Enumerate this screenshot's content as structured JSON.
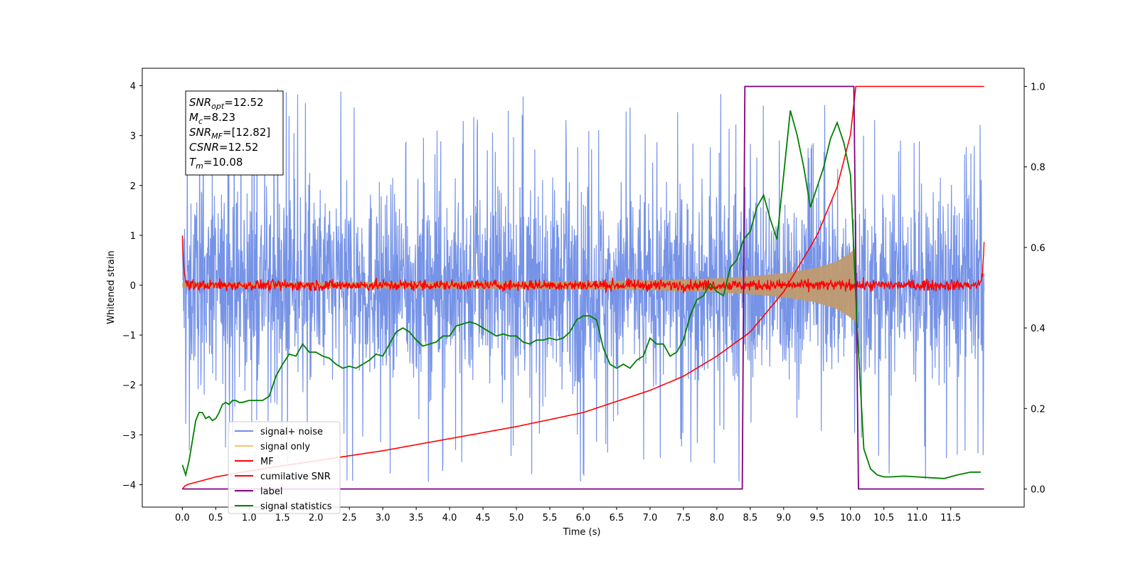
{
  "chart_data": {
    "type": "line",
    "xlabel": "Time (s)",
    "ylabel": "Whitened strain",
    "xlim": [
      -0.6,
      12.6
    ],
    "ylim": [
      -4.45,
      4.35
    ],
    "y2lim": [
      -0.045,
      1.045
    ],
    "x_ticks": [
      "0.0",
      "0.5",
      "1.0",
      "1.5",
      "2.0",
      "2.5",
      "3.0",
      "3.5",
      "4.0",
      "4.5",
      "5.0",
      "5.5",
      "6.0",
      "6.5",
      "7.0",
      "7.5",
      "8.0",
      "8.5",
      "9.0",
      "9.5",
      "10.0",
      "10.5",
      "11.0",
      "11.5"
    ],
    "y_ticks": [
      "−4",
      "−3",
      "−2",
      "−1",
      "0",
      "1",
      "2",
      "3",
      "4"
    ],
    "y2_ticks": [
      "0.0",
      "0.2",
      "0.4",
      "0.6",
      "0.8",
      "1.0"
    ],
    "annotation": {
      "lines": [
        {
          "sym": "SNR",
          "sub": "opt",
          "val": "=12.52"
        },
        {
          "sym": "M",
          "sub": "c",
          "val": "=8.23"
        },
        {
          "sym": "SNR",
          "sub": "MF",
          "val": "=[12.82]"
        },
        {
          "sym": "CSNR",
          "sub": "",
          "val": "=12.52"
        },
        {
          "sym": "T",
          "sub": "m",
          "val": "=10.08"
        }
      ]
    },
    "legend": {
      "position": "lower-left",
      "entries": [
        {
          "label": "signal+ noise",
          "color": "#6f8de6"
        },
        {
          "label": "signal only",
          "color": "#f5c56b"
        },
        {
          "label": "MF",
          "color": "#ff0000"
        },
        {
          "label": "cumilative SNR",
          "color": "#ff0000"
        },
        {
          "label": "label",
          "color": "#800080"
        },
        {
          "label": "signal statistics",
          "color": "#008000"
        }
      ]
    },
    "series": [
      {
        "name": "signal+ noise",
        "axis": "left",
        "color": "#6f8de6",
        "x_range": [
          0,
          12
        ],
        "envelope_min": -4.1,
        "envelope_max": 3.95
      },
      {
        "name": "signal only",
        "axis": "left",
        "color": "#c09a70",
        "envelope": {
          "x": [
            0,
            2,
            4,
            6,
            7,
            8,
            8.5,
            9,
            9.5,
            9.8,
            10,
            10.08
          ],
          "amp": [
            0.05,
            0.06,
            0.07,
            0.08,
            0.1,
            0.14,
            0.18,
            0.24,
            0.35,
            0.48,
            0.65,
            0.75
          ]
        }
      },
      {
        "name": "MF",
        "axis": "left",
        "color": "#ff0000",
        "x_range": [
          0,
          12
        ],
        "center": 0,
        "noise_amp": 0.1,
        "edge_peak": 1.0
      },
      {
        "name": "cumilative SNR",
        "axis": "right",
        "color": "#ff0000",
        "x": [
          0,
          0.05,
          0.5,
          1,
          2,
          3,
          4,
          5,
          6,
          7,
          7.5,
          8,
          8.5,
          9,
          9.5,
          9.8,
          10,
          10.08,
          12
        ],
        "y": [
          0.0,
          0.01,
          0.03,
          0.045,
          0.07,
          0.095,
          0.125,
          0.155,
          0.19,
          0.245,
          0.28,
          0.33,
          0.39,
          0.49,
          0.63,
          0.75,
          0.88,
          1.0,
          1.0
        ]
      },
      {
        "name": "label",
        "axis": "right",
        "color": "#800080",
        "x": [
          0,
          8.38,
          8.42,
          10.05,
          10.12,
          12
        ],
        "y": [
          0,
          0,
          1,
          1,
          0,
          0
        ]
      },
      {
        "name": "signal statistics",
        "axis": "right",
        "color": "#008000",
        "x": [
          0,
          0.05,
          0.1,
          0.15,
          0.2,
          0.25,
          0.3,
          0.35,
          0.4,
          0.45,
          0.5,
          0.55,
          0.6,
          0.65,
          0.7,
          0.75,
          0.8,
          0.85,
          0.9,
          1.0,
          1.1,
          1.2,
          1.3,
          1.4,
          1.5,
          1.6,
          1.7,
          1.8,
          1.9,
          2.0,
          2.1,
          2.2,
          2.3,
          2.4,
          2.5,
          2.6,
          2.7,
          2.8,
          2.9,
          3.0,
          3.1,
          3.2,
          3.3,
          3.4,
          3.5,
          3.6,
          3.7,
          3.8,
          3.9,
          4.0,
          4.1,
          4.2,
          4.3,
          4.4,
          4.5,
          4.6,
          4.7,
          4.8,
          4.9,
          5.0,
          5.1,
          5.2,
          5.3,
          5.4,
          5.5,
          5.6,
          5.7,
          5.8,
          5.9,
          6.0,
          6.1,
          6.2,
          6.3,
          6.4,
          6.5,
          6.6,
          6.7,
          6.8,
          6.9,
          7.0,
          7.1,
          7.2,
          7.3,
          7.4,
          7.5,
          7.6,
          7.7,
          7.8,
          7.9,
          8.0,
          8.1,
          8.2,
          8.3,
          8.4,
          8.5,
          8.6,
          8.7,
          8.8,
          8.9,
          9.0,
          9.1,
          9.2,
          9.3,
          9.4,
          9.5,
          9.6,
          9.7,
          9.8,
          9.9,
          10.0,
          10.1,
          10.2,
          10.3,
          10.4,
          10.5,
          10.6,
          10.8,
          11.0,
          11.2,
          11.4,
          11.6,
          11.8,
          11.95
        ],
        "y": [
          0.06,
          0.035,
          0.07,
          0.12,
          0.17,
          0.19,
          0.19,
          0.175,
          0.18,
          0.17,
          0.175,
          0.19,
          0.21,
          0.215,
          0.21,
          0.22,
          0.22,
          0.215,
          0.215,
          0.22,
          0.22,
          0.22,
          0.23,
          0.28,
          0.31,
          0.335,
          0.33,
          0.36,
          0.34,
          0.34,
          0.33,
          0.325,
          0.31,
          0.3,
          0.305,
          0.3,
          0.31,
          0.32,
          0.335,
          0.33,
          0.36,
          0.39,
          0.4,
          0.39,
          0.37,
          0.355,
          0.36,
          0.365,
          0.38,
          0.38,
          0.405,
          0.41,
          0.415,
          0.41,
          0.4,
          0.39,
          0.38,
          0.385,
          0.38,
          0.38,
          0.365,
          0.36,
          0.37,
          0.37,
          0.375,
          0.37,
          0.375,
          0.39,
          0.42,
          0.43,
          0.43,
          0.42,
          0.35,
          0.31,
          0.3,
          0.31,
          0.3,
          0.32,
          0.33,
          0.375,
          0.36,
          0.36,
          0.33,
          0.34,
          0.37,
          0.43,
          0.47,
          0.48,
          0.51,
          0.49,
          0.48,
          0.55,
          0.57,
          0.62,
          0.64,
          0.7,
          0.73,
          0.67,
          0.62,
          0.78,
          0.94,
          0.88,
          0.8,
          0.7,
          0.75,
          0.8,
          0.87,
          0.91,
          0.86,
          0.78,
          0.4,
          0.1,
          0.05,
          0.035,
          0.03,
          0.03,
          0.032,
          0.03,
          0.028,
          0.026,
          0.035,
          0.042,
          0.042
        ]
      }
    ]
  }
}
